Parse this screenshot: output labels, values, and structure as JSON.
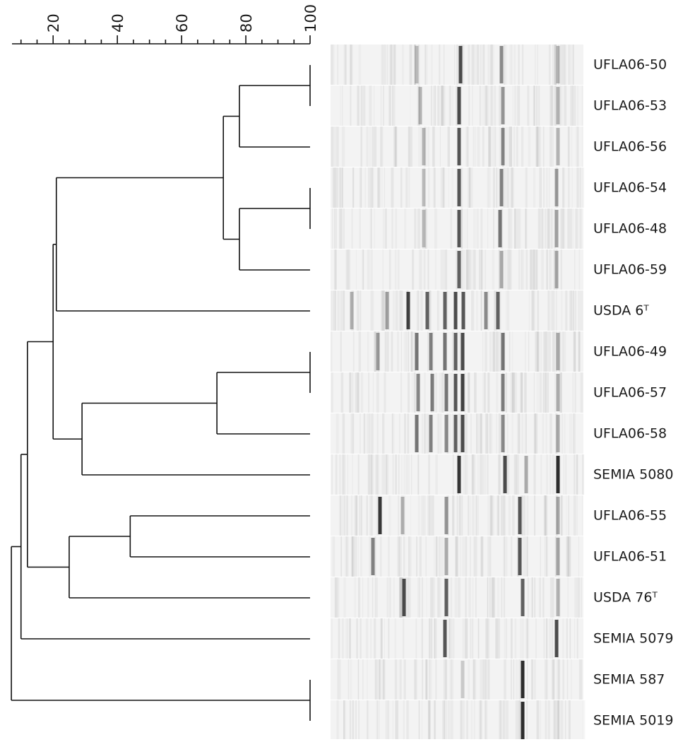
{
  "chart_data": {
    "type": "dendrogram",
    "xlim": [
      5,
      100
    ],
    "xticks": [
      20,
      40,
      60,
      80,
      100
    ],
    "xticks_minor": [
      10,
      15,
      25,
      30,
      35,
      45,
      50,
      55,
      65,
      70,
      75,
      85,
      90,
      95
    ],
    "leaves": [
      "UFLA06-50",
      "UFLA06-53",
      "UFLA06-56",
      "UFLA06-54",
      "UFLA06-48",
      "UFLA06-59",
      "USDA 6ᵀ",
      "UFLA06-49",
      "UFLA06-57",
      "UFLA06-58",
      "SEMIA 5080",
      "UFLA06-55",
      "UFLA06-51",
      "USDA 76ᵀ",
      "SEMIA 5079",
      "SEMIA 587",
      "SEMIA 5019"
    ],
    "tree": {
      "value": 7,
      "children": [
        {
          "value": 10,
          "children": [
            {
              "value": 12,
              "children": [
                {
                  "value": 20,
                  "children": [
                    {
                      "value": 21,
                      "children": [
                        {
                          "value": 73,
                          "children": [
                            {
                              "value": 78,
                              "children": [
                                {
                                  "value": 100,
                                  "children": [
                                    0,
                                    1
                                  ]
                                },
                                2
                              ]
                            },
                            {
                              "value": 78,
                              "children": [
                                {
                                  "value": 100,
                                  "children": [
                                    3,
                                    4
                                  ]
                                },
                                5
                              ]
                            }
                          ]
                        },
                        6
                      ]
                    },
                    {
                      "value": 29,
                      "children": [
                        {
                          "value": 71,
                          "children": [
                            {
                              "value": 100,
                              "children": [
                                7,
                                8
                              ]
                            },
                            9
                          ]
                        },
                        10
                      ]
                    }
                  ]
                },
                {
                  "value": 25,
                  "children": [
                    {
                      "value": 44,
                      "children": [
                        11,
                        12
                      ]
                    },
                    13
                  ]
                }
              ]
            },
            14
          ]
        },
        {
          "value": 100,
          "children": [
            15,
            16
          ]
        }
      ]
    }
  }
}
